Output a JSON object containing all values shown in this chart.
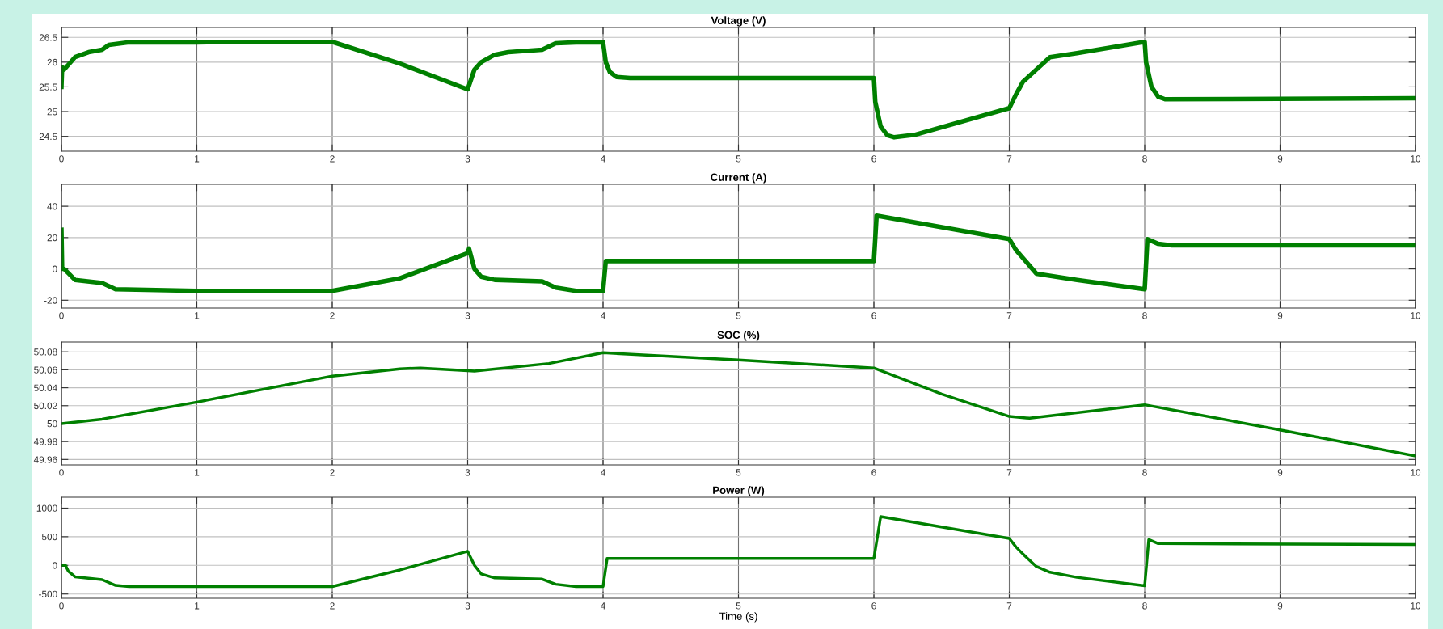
{
  "chart_data": [
    {
      "type": "line",
      "title": "Voltage (V)",
      "xlim": [
        0,
        10
      ],
      "xticks": [
        0,
        1,
        2,
        3,
        4,
        5,
        6,
        7,
        8,
        9,
        10
      ],
      "ylim": [
        24.2,
        26.7
      ],
      "yticks": [
        24.5,
        25,
        25.5,
        26,
        26.5
      ],
      "grid": true,
      "series": [
        {
          "color": "#008000",
          "x": [
            0,
            0.005,
            0.02,
            0.1,
            0.2,
            0.3,
            0.35,
            0.5,
            1.0,
            2.0,
            2.5,
            3.0,
            3.05,
            3.1,
            3.2,
            3.3,
            3.55,
            3.65,
            3.8,
            4.0,
            4.02,
            4.05,
            4.1,
            4.2,
            5.0,
            6.0,
            6.01,
            6.05,
            6.1,
            6.15,
            6.3,
            7.0,
            7.05,
            7.1,
            7.2,
            7.3,
            7.5,
            8.0,
            8.01,
            8.05,
            8.1,
            8.15,
            10.0
          ],
          "values": [
            25.5,
            25.9,
            25.85,
            26.1,
            26.2,
            26.25,
            26.35,
            26.4,
            26.4,
            26.41,
            25.97,
            25.45,
            25.85,
            26.0,
            26.15,
            26.2,
            26.25,
            26.38,
            26.4,
            26.4,
            26.0,
            25.8,
            25.7,
            25.68,
            25.68,
            25.68,
            25.2,
            24.7,
            24.52,
            24.48,
            24.53,
            25.07,
            25.35,
            25.6,
            25.85,
            26.1,
            26.18,
            26.41,
            26.0,
            25.5,
            25.3,
            25.25,
            25.27
          ]
        }
      ]
    },
    {
      "type": "line",
      "title": "Current (A)",
      "xlim": [
        0,
        10
      ],
      "xticks": [
        0,
        1,
        2,
        3,
        4,
        5,
        6,
        7,
        8,
        9,
        10
      ],
      "ylim": [
        -25,
        54
      ],
      "yticks": [
        -20,
        0,
        20,
        40
      ],
      "grid": true,
      "series": [
        {
          "color": "#008000",
          "x": [
            0,
            0.005,
            0.02,
            0.1,
            0.3,
            0.4,
            1.0,
            2.0,
            2.5,
            3.0,
            3.01,
            3.05,
            3.1,
            3.2,
            3.55,
            3.65,
            3.8,
            4.0,
            4.02,
            5.0,
            6.0,
            6.02,
            7.0,
            7.05,
            7.1,
            7.2,
            7.5,
            8.0,
            8.02,
            8.1,
            8.2,
            10.0
          ],
          "values": [
            25,
            0,
            0,
            -7,
            -9,
            -13,
            -14,
            -14,
            -6,
            10,
            13,
            0,
            -5,
            -7,
            -8,
            -12,
            -14,
            -14,
            5,
            5,
            5,
            34,
            19,
            12,
            7,
            -3,
            -7,
            -13,
            19,
            16,
            15,
            15
          ]
        }
      ]
    },
    {
      "type": "line",
      "title": "SOC (%)",
      "xlim": [
        0,
        10
      ],
      "xticks": [
        0,
        1,
        2,
        3,
        4,
        5,
        6,
        7,
        8,
        9,
        10
      ],
      "ylim": [
        49.954,
        50.091
      ],
      "yticks": [
        49.96,
        49.98,
        50,
        50.02,
        50.04,
        50.06,
        50.08
      ],
      "grid": true,
      "series": [
        {
          "color": "#008000",
          "x": [
            0,
            0.3,
            1.0,
            2.0,
            2.5,
            2.65,
            3.0,
            3.05,
            3.6,
            4.0,
            5.0,
            6.0,
            6.5,
            7.0,
            7.15,
            8.0,
            9.0,
            10.0
          ],
          "values": [
            50.0,
            50.005,
            50.024,
            50.053,
            50.061,
            50.062,
            50.059,
            50.0585,
            50.067,
            50.079,
            50.071,
            50.062,
            50.033,
            50.008,
            50.006,
            50.021,
            49.993,
            49.964
          ]
        }
      ]
    },
    {
      "type": "line",
      "title": "Power (W)",
      "xlabel": "Time (s)",
      "xlim": [
        0,
        10
      ],
      "xticks": [
        0,
        1,
        2,
        3,
        4,
        5,
        6,
        7,
        8,
        9,
        10
      ],
      "ylim": [
        -575,
        1190
      ],
      "yticks": [
        -500,
        0,
        500,
        1000
      ],
      "grid": true,
      "series": [
        {
          "color": "#008000",
          "x": [
            0,
            0.03,
            0.05,
            0.1,
            0.3,
            0.4,
            0.5,
            2.0,
            2.5,
            3.0,
            3.05,
            3.1,
            3.2,
            3.55,
            3.65,
            3.8,
            4.0,
            4.03,
            6.0,
            6.05,
            7.0,
            7.05,
            7.1,
            7.2,
            7.3,
            7.5,
            8.0,
            8.03,
            8.1,
            10.0
          ],
          "values": [
            0,
            0,
            -100,
            -200,
            -250,
            -350,
            -370,
            -370,
            -80,
            245,
            0,
            -150,
            -220,
            -240,
            -330,
            -370,
            -370,
            120,
            120,
            850,
            470,
            320,
            200,
            -20,
            -120,
            -210,
            -355,
            450,
            380,
            365
          ]
        }
      ]
    }
  ]
}
